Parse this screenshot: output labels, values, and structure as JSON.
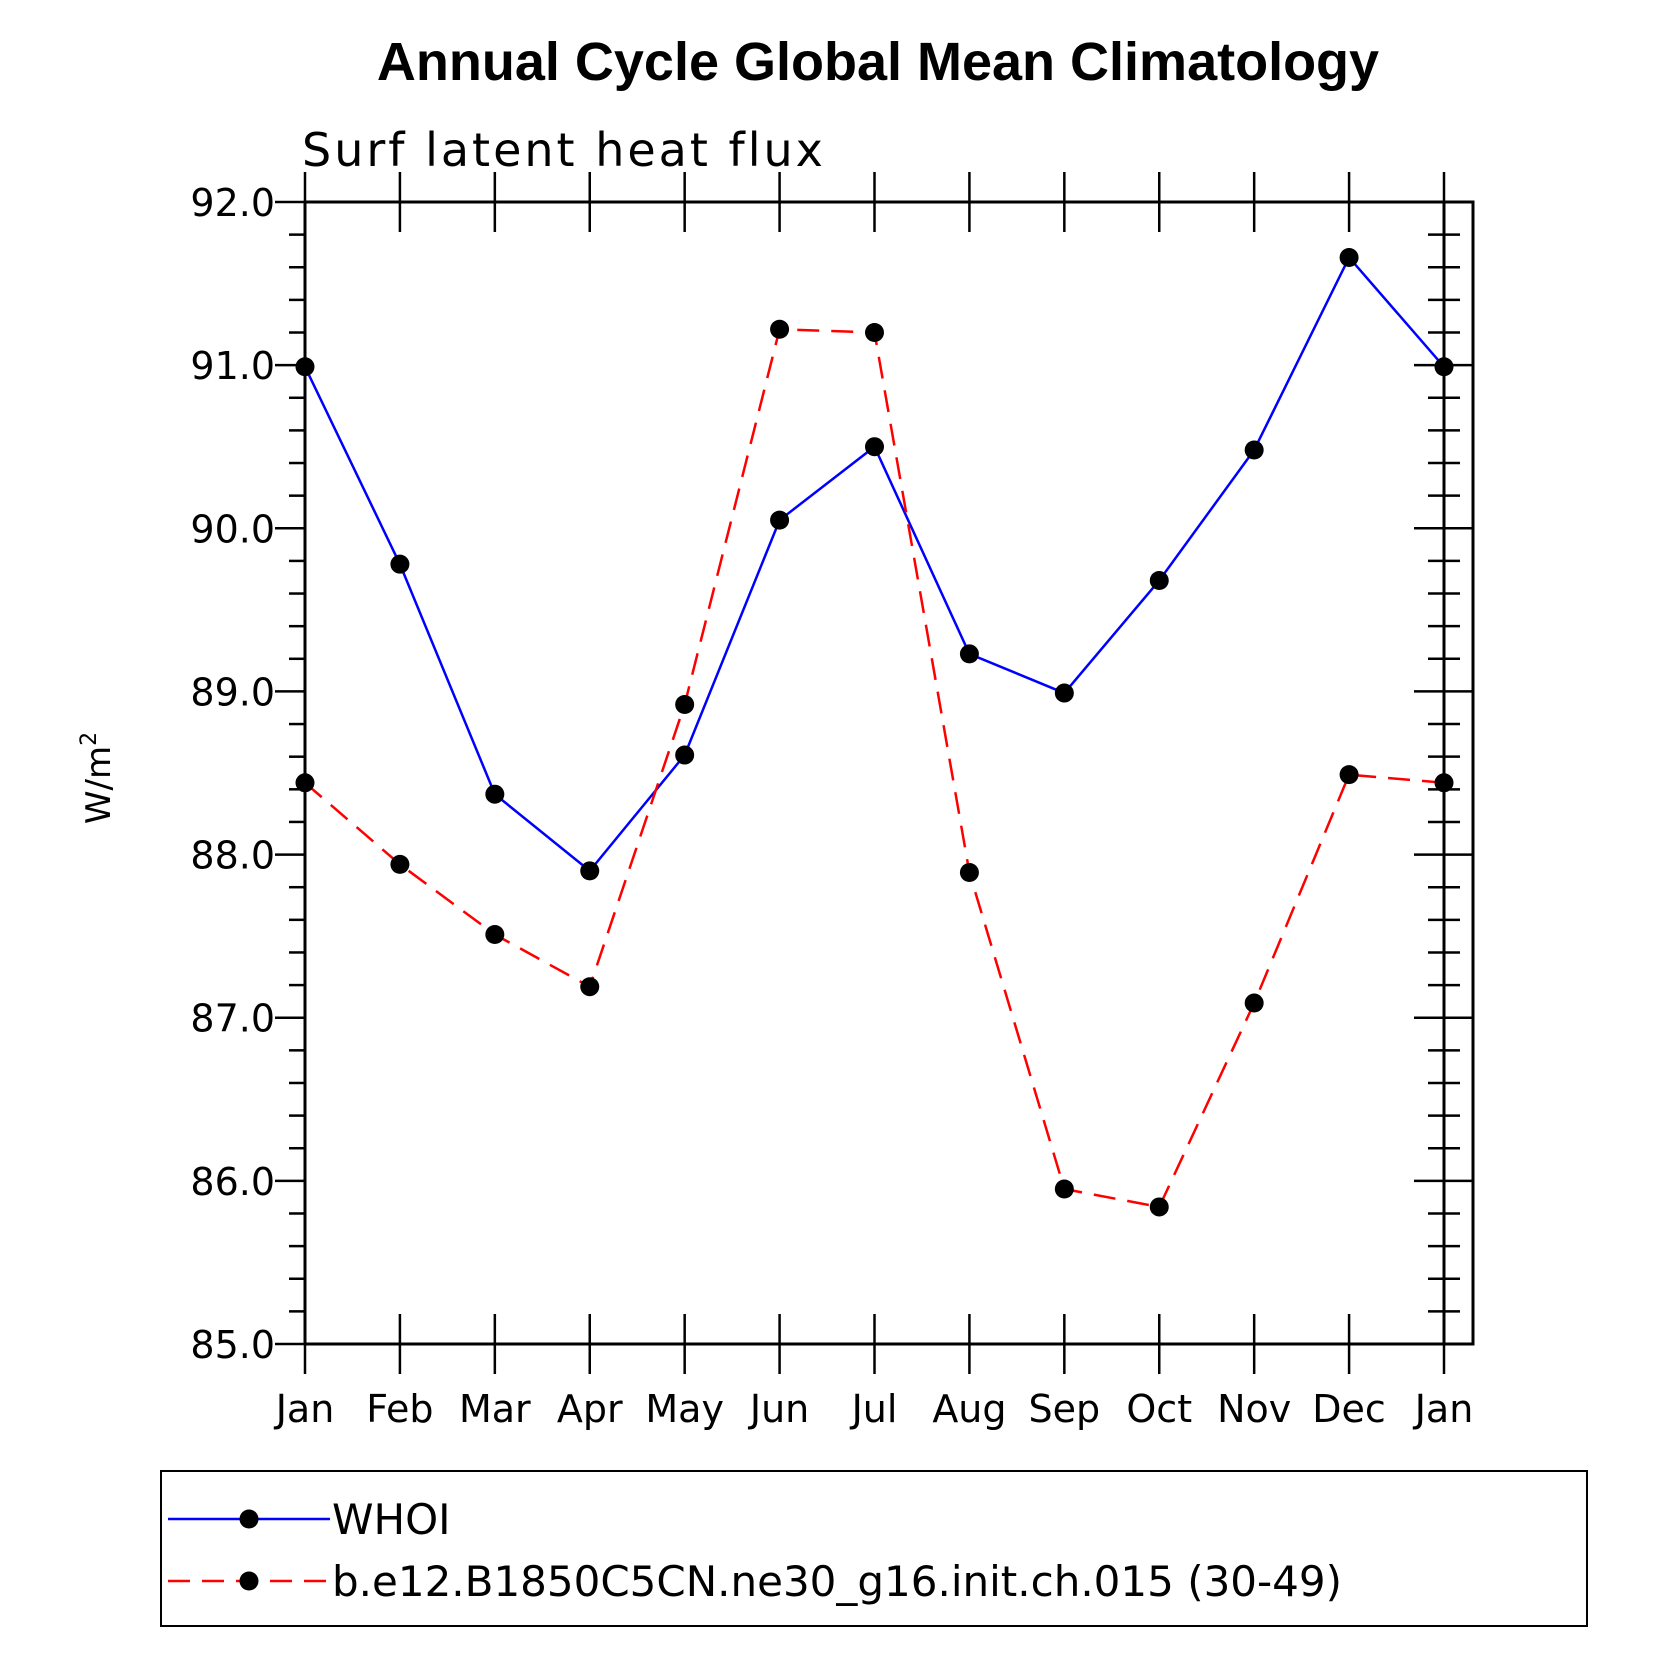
{
  "chart_data": {
    "type": "line",
    "title": "Annual Cycle Global Mean Climatology",
    "subtitle": "Surf latent heat flux",
    "ylabel": "W/m",
    "ylabel_superscript": "2",
    "xlabel": "",
    "ylim": [
      85.0,
      92.0
    ],
    "yticks": [
      "85.0",
      "86.0",
      "87.0",
      "88.0",
      "89.0",
      "90.0",
      "91.0",
      "92.0"
    ],
    "categories": [
      "Jan",
      "Feb",
      "Mar",
      "Apr",
      "May",
      "Jun",
      "Jul",
      "Aug",
      "Sep",
      "Oct",
      "Nov",
      "Dec",
      "Jan"
    ],
    "grid": false,
    "legend_position": "bottom",
    "series": [
      {
        "name": "WHOI",
        "color": "#0000ff",
        "dashed": false,
        "values": [
          90.99,
          89.78,
          88.37,
          87.9,
          88.61,
          90.05,
          90.5,
          89.23,
          88.99,
          89.68,
          90.48,
          91.66,
          90.99
        ]
      },
      {
        "name": "b.e12.B1850C5CN.ne30_g16.init.ch.015 (30-49)",
        "color": "#ff0000",
        "dashed": true,
        "values": [
          88.44,
          87.94,
          87.51,
          87.19,
          88.92,
          91.22,
          91.2,
          87.89,
          85.95,
          85.84,
          87.09,
          88.49,
          88.44
        ]
      }
    ]
  }
}
